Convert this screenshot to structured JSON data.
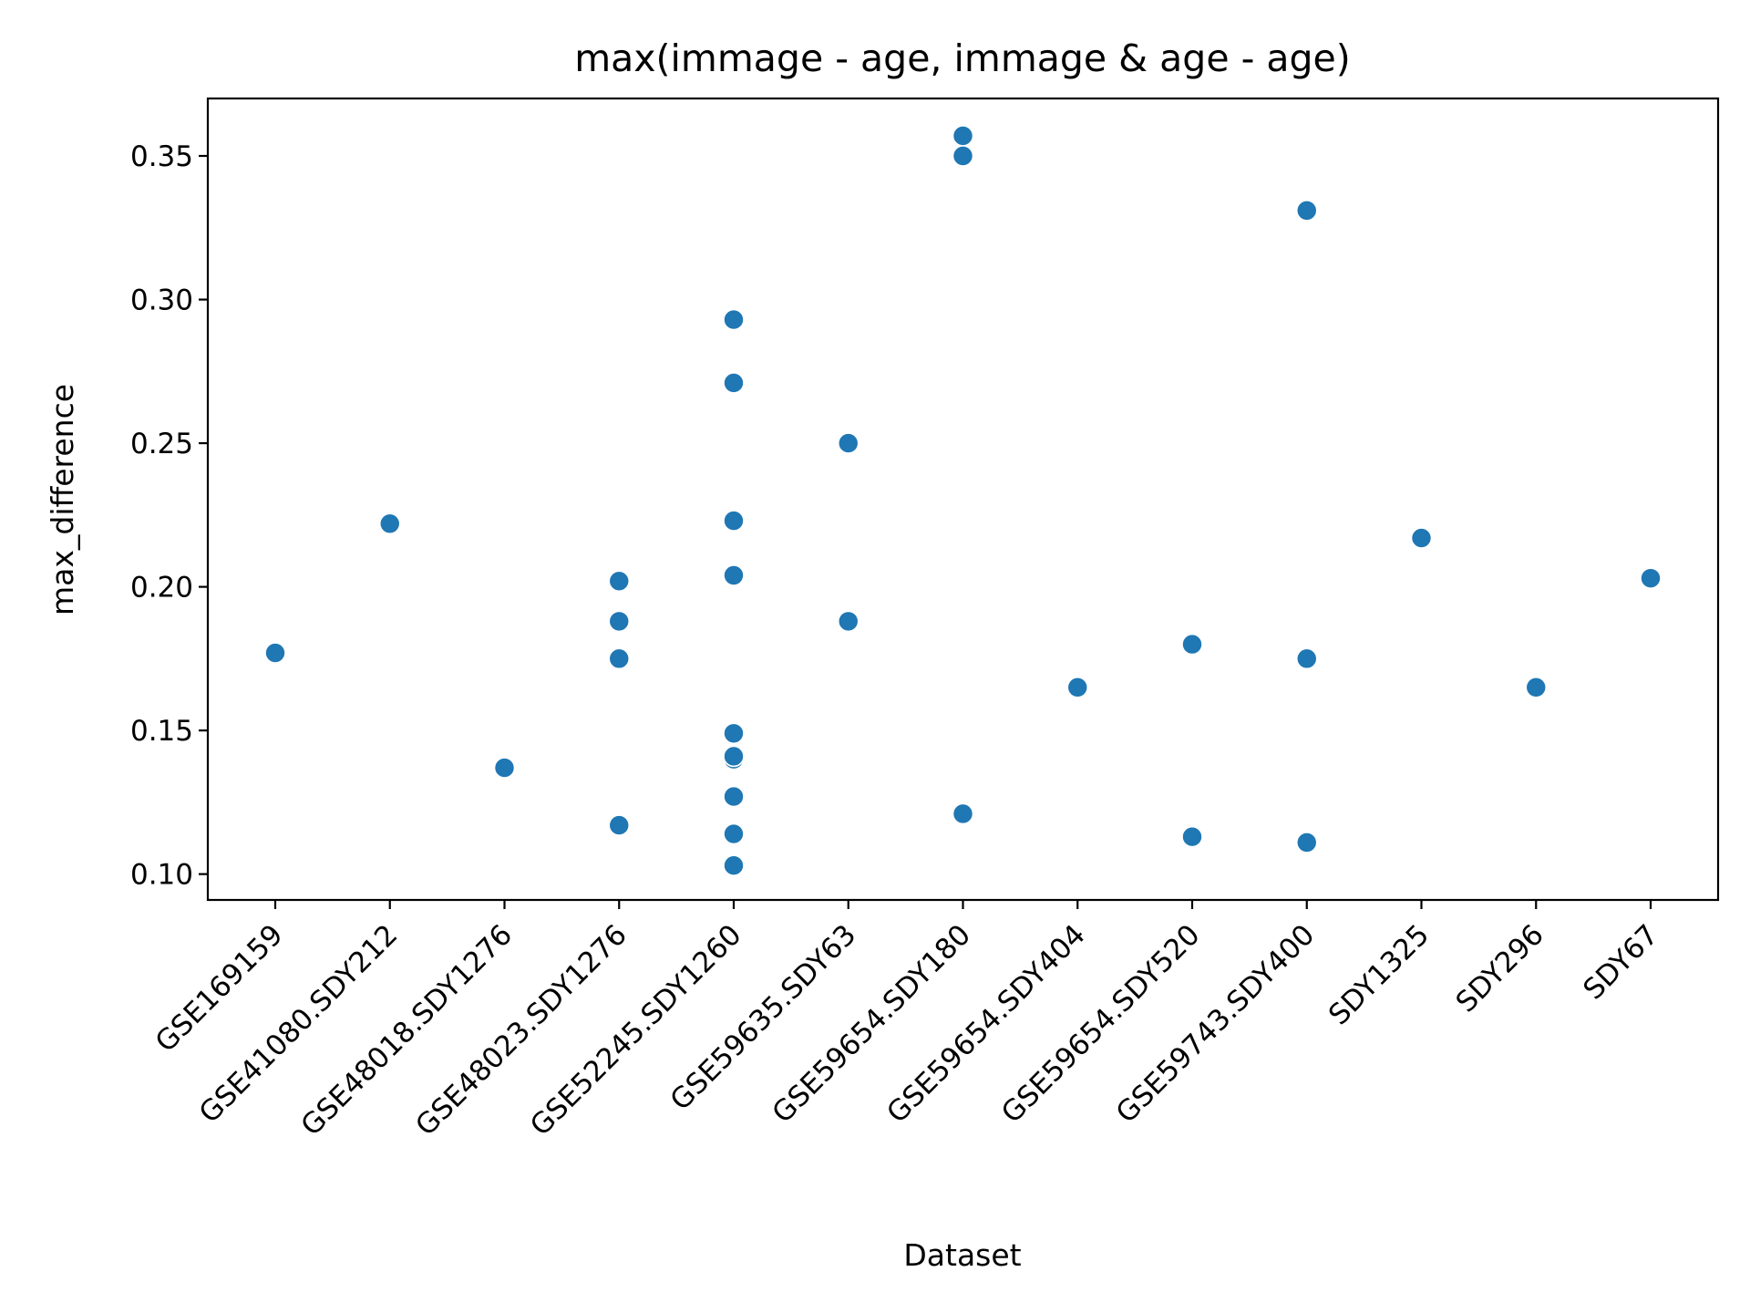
{
  "chart_data": {
    "type": "scatter",
    "title": "max(immage - age, immage & age - age)",
    "xlabel": "Dataset",
    "ylabel": "max_difference",
    "categories": [
      "GSE169159",
      "GSE41080.SDY212",
      "GSE48018.SDY1276",
      "GSE48023.SDY1276",
      "GSE52245.SDY1260",
      "GSE59635.SDY63",
      "GSE59654.SDY180",
      "GSE59654.SDY404",
      "GSE59654.SDY520",
      "GSE59743.SDY400",
      "SDY1325",
      "SDY296",
      "SDY67"
    ],
    "yticks": [
      "0.10",
      "0.15",
      "0.20",
      "0.25",
      "0.30",
      "0.35"
    ],
    "ylim": [
      0.091,
      0.37
    ],
    "grid": false,
    "marker_color": "#1f77b4",
    "points": [
      {
        "x": "GSE169159",
        "y": 0.177
      },
      {
        "x": "GSE41080.SDY212",
        "y": 0.222
      },
      {
        "x": "GSE48018.SDY1276",
        "y": 0.137
      },
      {
        "x": "GSE48023.SDY1276",
        "y": 0.202
      },
      {
        "x": "GSE48023.SDY1276",
        "y": 0.188
      },
      {
        "x": "GSE48023.SDY1276",
        "y": 0.175
      },
      {
        "x": "GSE48023.SDY1276",
        "y": 0.117
      },
      {
        "x": "GSE52245.SDY1260",
        "y": 0.293
      },
      {
        "x": "GSE52245.SDY1260",
        "y": 0.271
      },
      {
        "x": "GSE52245.SDY1260",
        "y": 0.223
      },
      {
        "x": "GSE52245.SDY1260",
        "y": 0.204
      },
      {
        "x": "GSE52245.SDY1260",
        "y": 0.149
      },
      {
        "x": "GSE52245.SDY1260",
        "y": 0.14
      },
      {
        "x": "GSE52245.SDY1260",
        "y": 0.141
      },
      {
        "x": "GSE52245.SDY1260",
        "y": 0.127
      },
      {
        "x": "GSE52245.SDY1260",
        "y": 0.114
      },
      {
        "x": "GSE52245.SDY1260",
        "y": 0.103
      },
      {
        "x": "GSE59635.SDY63",
        "y": 0.25
      },
      {
        "x": "GSE59635.SDY63",
        "y": 0.188
      },
      {
        "x": "GSE59654.SDY180",
        "y": 0.357
      },
      {
        "x": "GSE59654.SDY180",
        "y": 0.35
      },
      {
        "x": "GSE59654.SDY180",
        "y": 0.121
      },
      {
        "x": "GSE59654.SDY404",
        "y": 0.165
      },
      {
        "x": "GSE59654.SDY520",
        "y": 0.18
      },
      {
        "x": "GSE59654.SDY520",
        "y": 0.113
      },
      {
        "x": "GSE59743.SDY400",
        "y": 0.331
      },
      {
        "x": "GSE59743.SDY400",
        "y": 0.175
      },
      {
        "x": "GSE59743.SDY400",
        "y": 0.111
      },
      {
        "x": "SDY1325",
        "y": 0.217
      },
      {
        "x": "SDY296",
        "y": 0.165
      },
      {
        "x": "SDY67",
        "y": 0.203
      }
    ]
  }
}
